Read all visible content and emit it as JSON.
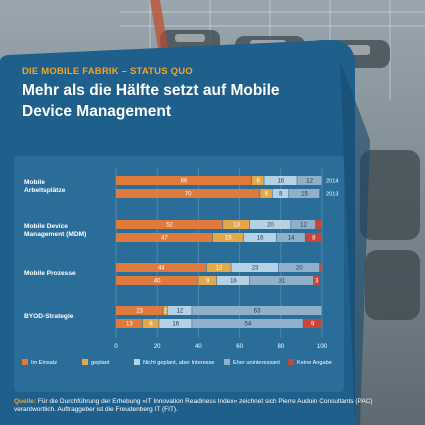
{
  "kicker": "DIE MOBILE FABRIK – STATUS QUO",
  "headline": "Mehr als die Hälfte setzt auf Mobile Device Management",
  "source": {
    "label": "Quelle:",
    "text": "Für die Durchführung der Erhebung »IT Innovation Readiness Index« zeichnet sich Pierre Audoin Consultants (PAC) verantwortlich. Auftraggeber ist die Freudenberg IT (FIT)."
  },
  "colors": {
    "panel": "#1f5f8c",
    "chart_bg": "#2a6d98",
    "im_einsatz": "#e07a3c",
    "geplant": "#e3a84a",
    "nicht_geplant": "#b4d2e4",
    "eher_uninteressant": "#8fb0c8",
    "keine_angabe": "#c8453a",
    "kicker": "#f0a52a"
  },
  "chart_data": {
    "type": "bar",
    "orientation": "horizontal",
    "stacked": true,
    "xlim": [
      0,
      100
    ],
    "xticks": [
      "0",
      "20",
      "40",
      "60",
      "80",
      "100"
    ],
    "grid": true,
    "legend_position": "bottom",
    "groups": [
      {
        "label": "Mobile Arbeitsplätze",
        "bars": [
          {
            "year": "2014",
            "values": [
              66,
              6,
              16,
              12,
              0
            ],
            "labels": [
              "66",
              "6",
              "16",
              "12",
              ""
            ]
          },
          {
            "year": "2013",
            "values": [
              70,
              6,
              8,
              15,
              0
            ],
            "labels": [
              "70",
              "6",
              "8",
              "15",
              ""
            ]
          }
        ]
      },
      {
        "label": "Mobile Device Management (MDM)",
        "bars": [
          {
            "year": "",
            "values": [
              52,
              13,
              20,
              12,
              3
            ],
            "labels": [
              "52",
              "13",
              "20",
              "12",
              ""
            ]
          },
          {
            "year": "",
            "values": [
              47,
              15,
              16,
              14,
              8
            ],
            "labels": [
              "47",
              "15",
              "16",
              "14",
              "8"
            ]
          }
        ]
      },
      {
        "label": "Mobile Prozesse",
        "bars": [
          {
            "year": "",
            "values": [
              44,
              12,
              23,
              20,
              1
            ],
            "labels": [
              "44",
              "12",
              "23",
              "20",
              ""
            ]
          },
          {
            "year": "",
            "values": [
              40,
              9,
              16,
              31,
              3
            ],
            "labels": [
              "40",
              "9",
              "16",
              "31",
              "3"
            ]
          }
        ]
      },
      {
        "label": "BYOD-Strategie",
        "bars": [
          {
            "year": "",
            "values": [
              23,
              2,
              12,
              63,
              0
            ],
            "labels": [
              "23",
              "2",
              "12",
              "63",
              ""
            ]
          },
          {
            "year": "",
            "values": [
              13,
              8,
              16,
              54,
              9
            ],
            "labels": [
              "13",
              "8",
              "16",
              "54",
              "9"
            ]
          }
        ]
      }
    ],
    "series": [
      {
        "name": "Im Einsatz"
      },
      {
        "name": "geplant"
      },
      {
        "name": "Nicht geplant, aber Interesse"
      },
      {
        "name": "Eher uninteressant"
      },
      {
        "name": "Keine Angabe"
      }
    ]
  }
}
